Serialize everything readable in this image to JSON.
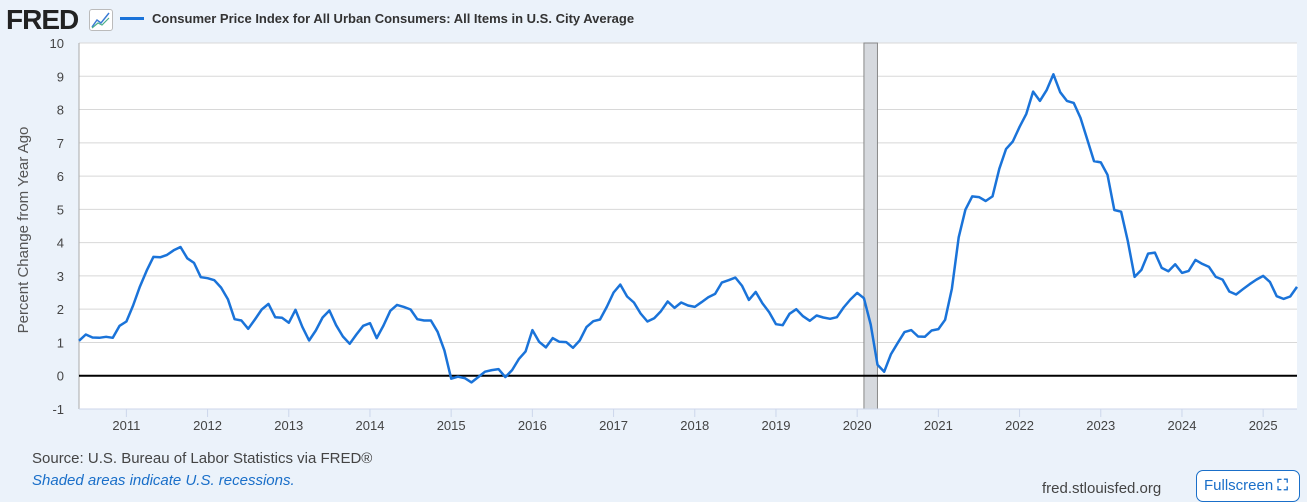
{
  "header": {
    "logo": "FRED",
    "series_title": "Consumer Price Index for All Urban Consumers: All Items in U.S. City Average"
  },
  "footer": {
    "source": "Source: U.S. Bureau of Labor Statistics via FRED®",
    "note": "Shaded areas indicate U.S. recessions.",
    "site": "fred.stlouisfed.org",
    "fullscreen": "Fullscreen"
  },
  "colors": {
    "line": "#1a73d9",
    "recession": "#d6d9de"
  },
  "chart_data": {
    "type": "line",
    "title": "Consumer Price Index for All Urban Consumers: All Items in U.S. City Average",
    "ylabel": "Percent Change from Year Ago",
    "xlabel": "",
    "ylim": [
      -1,
      10
    ],
    "yticks": [
      "-1",
      "0",
      "1",
      "2",
      "3",
      "4",
      "5",
      "6",
      "7",
      "8",
      "9",
      "10"
    ],
    "xticks": [
      "2011",
      "2012",
      "2013",
      "2014",
      "2015",
      "2016",
      "2017",
      "2018",
      "2019",
      "2020",
      "2021",
      "2022",
      "2023",
      "2024",
      "2025"
    ],
    "x_start": "2010-06",
    "x_end": "2025-06",
    "frequency": "monthly",
    "recessions": [
      [
        "2020-02",
        "2020-04"
      ]
    ],
    "grid": true,
    "series": [
      {
        "name": "Consumer Price Index for All Urban Consumers: All Items in U.S. City Average",
        "values": [
          1.05,
          1.24,
          1.15,
          1.14,
          1.17,
          1.14,
          1.5,
          1.63,
          2.11,
          2.68,
          3.16,
          3.57,
          3.56,
          3.63,
          3.77,
          3.87,
          3.53,
          3.39,
          2.96,
          2.93,
          2.87,
          2.65,
          2.3,
          1.7,
          1.66,
          1.41,
          1.69,
          1.99,
          2.16,
          1.76,
          1.74,
          1.59,
          1.98,
          1.47,
          1.06,
          1.36,
          1.75,
          1.96,
          1.52,
          1.18,
          0.96,
          1.24,
          1.5,
          1.58,
          1.13,
          1.51,
          1.95,
          2.13,
          2.07,
          1.99,
          1.7,
          1.66,
          1.66,
          1.32,
          0.76,
          -0.09,
          -0.03,
          -0.07,
          -0.2,
          -0.04,
          0.12,
          0.17,
          0.2,
          -0.04,
          0.17,
          0.5,
          0.73,
          1.37,
          1.02,
          0.85,
          1.13,
          1.02,
          1.01,
          0.84,
          1.06,
          1.46,
          1.64,
          1.69,
          2.07,
          2.5,
          2.74,
          2.38,
          2.2,
          1.87,
          1.63,
          1.73,
          1.94,
          2.23,
          2.04,
          2.2,
          2.11,
          2.07,
          2.21,
          2.36,
          2.46,
          2.8,
          2.87,
          2.95,
          2.7,
          2.28,
          2.52,
          2.18,
          1.91,
          1.55,
          1.52,
          1.86,
          2.0,
          1.79,
          1.65,
          1.81,
          1.75,
          1.71,
          1.76,
          2.05,
          2.29,
          2.49,
          2.33,
          1.54,
          0.33,
          0.12,
          0.65,
          0.99,
          1.31,
          1.37,
          1.18,
          1.17,
          1.36,
          1.4,
          1.68,
          2.62,
          4.16,
          4.99,
          5.39,
          5.37,
          5.25,
          5.39,
          6.22,
          6.81,
          7.04,
          7.48,
          7.87,
          8.54,
          8.26,
          8.58,
          9.06,
          8.52,
          8.26,
          8.2,
          7.75,
          7.11,
          6.45,
          6.41,
          6.04,
          4.98,
          4.93,
          4.05,
          2.97,
          3.18,
          3.67,
          3.7,
          3.24,
          3.14,
          3.35,
          3.09,
          3.15,
          3.48,
          3.36,
          3.27,
          2.97,
          2.89,
          2.53,
          2.44,
          2.6,
          2.75,
          2.89,
          3.0,
          2.82,
          2.39,
          2.31,
          2.38,
          2.67
        ]
      }
    ]
  }
}
